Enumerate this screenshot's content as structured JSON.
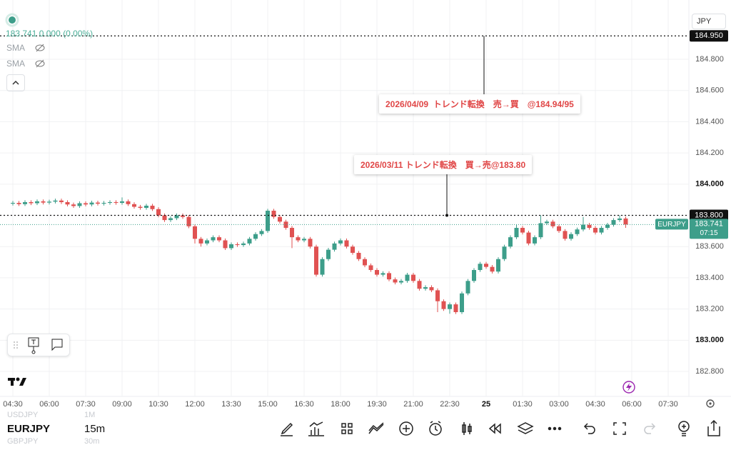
{
  "header": {
    "legend_price": "183.741 0.000 (0.00%)",
    "indicators": [
      "SMA",
      "SMA"
    ],
    "currency": "JPY"
  },
  "chart_data": {
    "type": "candlestick",
    "up_color": "#3d9e8a",
    "down_color": "#e05252",
    "grid": true,
    "ylim": [
      182.64,
      185.18
    ],
    "yticks": [
      {
        "value": 182.8,
        "label": "182.800"
      },
      {
        "value": 183.0,
        "label": "183.000"
      },
      {
        "value": 183.2,
        "label": "183.200"
      },
      {
        "value": 183.4,
        "label": "183.400"
      },
      {
        "value": 183.6,
        "label": "183.600"
      },
      {
        "value": 183.8,
        "label": "183.800"
      },
      {
        "value": 184.0,
        "label": "184.000"
      },
      {
        "value": 184.2,
        "label": "184.200"
      },
      {
        "value": 184.4,
        "label": "184.400"
      },
      {
        "value": 184.6,
        "label": "184.600"
      },
      {
        "value": 184.8,
        "label": "184.800"
      }
    ],
    "categories": [
      "04:30",
      null,
      null,
      null,
      null,
      null,
      "06:00",
      null,
      null,
      null,
      null,
      null,
      "07:30",
      null,
      null,
      null,
      null,
      null,
      "09:00",
      null,
      null,
      null,
      null,
      null,
      "10:30",
      null,
      null,
      null,
      null,
      null,
      "12:00",
      null,
      null,
      null,
      null,
      null,
      "13:30",
      null,
      null,
      null,
      null,
      null,
      "15:00",
      null,
      null,
      null,
      null,
      null,
      "16:30",
      null,
      null,
      null,
      null,
      null,
      "18:00",
      null,
      null,
      null,
      null,
      null,
      "19:30",
      null,
      null,
      null,
      null,
      null,
      "21:00",
      null,
      null,
      null,
      null,
      null,
      "22:30",
      null,
      null,
      null,
      null,
      null,
      "25",
      null,
      null,
      null,
      null,
      null,
      "01:30",
      null,
      null,
      null,
      null,
      null,
      "03:00",
      null,
      null,
      null,
      null,
      null,
      "04:30",
      null,
      null,
      null,
      null,
      null,
      "06:00",
      null,
      null,
      null,
      null,
      null,
      "07:30"
    ],
    "ohlc": [
      [
        183.875,
        183.892,
        183.863,
        183.88
      ],
      [
        183.88,
        183.892,
        183.86,
        183.872
      ],
      [
        183.872,
        183.897,
        183.86,
        183.885
      ],
      [
        183.885,
        183.897,
        183.866,
        183.878
      ],
      [
        183.878,
        183.902,
        183.866,
        183.89
      ],
      [
        183.89,
        183.902,
        183.87,
        183.882
      ],
      [
        183.882,
        183.9,
        183.87,
        183.888
      ],
      [
        183.888,
        183.907,
        183.876,
        183.895
      ],
      [
        183.895,
        183.907,
        183.873,
        183.885
      ],
      [
        183.885,
        183.897,
        183.858,
        183.87
      ],
      [
        183.87,
        183.882,
        183.848,
        183.86
      ],
      [
        183.86,
        183.89,
        183.848,
        183.878
      ],
      [
        183.878,
        183.89,
        183.858,
        183.87
      ],
      [
        183.87,
        183.894,
        183.858,
        183.882
      ],
      [
        183.882,
        183.894,
        183.863,
        183.875
      ],
      [
        183.875,
        183.892,
        183.863,
        183.88
      ],
      [
        183.88,
        183.897,
        183.868,
        183.885
      ],
      [
        183.885,
        183.897,
        183.868,
        183.88
      ],
      [
        183.88,
        183.915,
        183.868,
        183.89
      ],
      [
        183.89,
        183.902,
        183.86,
        183.872
      ],
      [
        183.872,
        183.884,
        183.843,
        183.855
      ],
      [
        183.855,
        183.867,
        183.836,
        183.848
      ],
      [
        183.848,
        183.874,
        183.836,
        183.862
      ],
      [
        183.862,
        183.874,
        183.828,
        183.84
      ],
      [
        183.84,
        183.852,
        183.788,
        183.8
      ],
      [
        183.8,
        183.812,
        183.758,
        183.77
      ],
      [
        183.77,
        183.794,
        183.758,
        183.782
      ],
      [
        183.782,
        183.812,
        183.77,
        183.8
      ],
      [
        183.8,
        183.812,
        183.778,
        183.79
      ],
      [
        183.79,
        183.802,
        183.718,
        183.73
      ],
      [
        183.73,
        183.742,
        183.62,
        183.65
      ],
      [
        183.65,
        183.662,
        183.6,
        183.62
      ],
      [
        183.62,
        183.652,
        183.608,
        183.64
      ],
      [
        183.64,
        183.672,
        183.628,
        183.66
      ],
      [
        183.66,
        183.672,
        183.628,
        183.64
      ],
      [
        183.64,
        183.652,
        183.578,
        183.59
      ],
      [
        183.59,
        183.627,
        183.578,
        183.615
      ],
      [
        183.615,
        183.627,
        183.598,
        183.61
      ],
      [
        183.61,
        183.632,
        183.598,
        183.62
      ],
      [
        183.62,
        183.662,
        183.608,
        183.65
      ],
      [
        183.65,
        183.692,
        183.638,
        183.68
      ],
      [
        183.68,
        183.712,
        183.668,
        183.7
      ],
      [
        183.7,
        183.842,
        183.688,
        183.83
      ],
      [
        183.83,
        183.842,
        183.778,
        183.79
      ],
      [
        183.79,
        183.802,
        183.748,
        183.76
      ],
      [
        183.76,
        183.772,
        183.708,
        183.72
      ],
      [
        183.72,
        183.732,
        183.59,
        183.66
      ],
      [
        183.66,
        183.672,
        183.628,
        183.64
      ],
      [
        183.64,
        183.662,
        183.628,
        183.65
      ],
      [
        183.65,
        183.662,
        183.588,
        183.6
      ],
      [
        183.6,
        183.612,
        183.408,
        183.42
      ],
      [
        183.42,
        183.532,
        183.408,
        183.52
      ],
      [
        183.52,
        183.592,
        183.508,
        183.58
      ],
      [
        183.58,
        183.632,
        183.568,
        183.62
      ],
      [
        183.62,
        183.652,
        183.608,
        183.64
      ],
      [
        183.64,
        183.652,
        183.588,
        183.6
      ],
      [
        183.6,
        183.612,
        183.548,
        183.56
      ],
      [
        183.56,
        183.572,
        183.508,
        183.52
      ],
      [
        183.52,
        183.532,
        183.468,
        183.48
      ],
      [
        183.48,
        183.492,
        183.438,
        183.45
      ],
      [
        183.45,
        183.462,
        183.408,
        183.42
      ],
      [
        183.42,
        183.442,
        183.408,
        183.43
      ],
      [
        183.43,
        183.442,
        183.378,
        183.39
      ],
      [
        183.39,
        183.402,
        183.358,
        183.37
      ],
      [
        183.37,
        183.392,
        183.358,
        183.38
      ],
      [
        183.38,
        183.432,
        183.368,
        183.42
      ],
      [
        183.42,
        183.432,
        183.368,
        183.38
      ],
      [
        183.38,
        183.392,
        183.318,
        183.33
      ],
      [
        183.33,
        183.352,
        183.318,
        183.34
      ],
      [
        183.34,
        183.352,
        183.308,
        183.32
      ],
      [
        183.32,
        183.332,
        183.18,
        183.25
      ],
      [
        183.25,
        183.262,
        183.188,
        183.2
      ],
      [
        183.2,
        183.242,
        183.17,
        183.23
      ],
      [
        183.23,
        183.242,
        183.168,
        183.18
      ],
      [
        183.18,
        183.312,
        183.168,
        183.3
      ],
      [
        183.3,
        183.392,
        183.288,
        183.38
      ],
      [
        183.38,
        183.462,
        183.368,
        183.45
      ],
      [
        183.45,
        183.502,
        183.438,
        183.49
      ],
      [
        183.49,
        183.502,
        183.458,
        183.47
      ],
      [
        183.47,
        183.482,
        183.428,
        183.44
      ],
      [
        183.44,
        183.532,
        183.428,
        183.52
      ],
      [
        183.52,
        183.612,
        183.508,
        183.6
      ],
      [
        183.6,
        183.672,
        183.588,
        183.66
      ],
      [
        183.66,
        183.742,
        183.648,
        183.72
      ],
      [
        183.72,
        183.732,
        183.678,
        183.69
      ],
      [
        183.69,
        183.702,
        183.608,
        183.62
      ],
      [
        183.62,
        183.672,
        183.608,
        183.66
      ],
      [
        183.66,
        183.8,
        183.648,
        183.75
      ],
      [
        183.75,
        183.772,
        183.738,
        183.76
      ],
      [
        183.76,
        183.772,
        183.718,
        183.73
      ],
      [
        183.73,
        183.742,
        183.688,
        183.7
      ],
      [
        183.7,
        183.712,
        183.638,
        183.65
      ],
      [
        183.65,
        183.692,
        183.638,
        183.68
      ],
      [
        183.68,
        183.722,
        183.668,
        183.71
      ],
      [
        183.71,
        183.79,
        183.698,
        183.74
      ],
      [
        183.74,
        183.752,
        183.708,
        183.72
      ],
      [
        183.72,
        183.732,
        183.678,
        183.69
      ],
      [
        183.69,
        183.732,
        183.678,
        183.72
      ],
      [
        183.72,
        183.752,
        183.708,
        183.74
      ],
      [
        183.74,
        183.782,
        183.728,
        183.77
      ],
      [
        183.77,
        183.8,
        183.758,
        183.78
      ],
      [
        183.78,
        183.792,
        183.72,
        183.741
      ],
      null,
      null,
      null,
      null,
      null,
      null,
      null
    ],
    "price_lines": [
      {
        "value": 184.95,
        "label": "184.950"
      },
      {
        "value": 183.8,
        "label": "183.800"
      }
    ],
    "last_price": {
      "value": 183.741,
      "label": "183.741",
      "symbol": "EURJPY",
      "countdown": "07:15",
      "color": "#3d9e8a"
    },
    "annotations": [
      "2026/04/09  トレンド転換　売→買　@184.94/95",
      "2026/03/11 トレンド転換　買→売@183.80"
    ]
  },
  "footer": {
    "prev_symbol": "USDJPY",
    "prev_interval": "1M",
    "symbol": "EURJPY",
    "interval": "15m",
    "next_symbol": "GBPJPY",
    "next_interval": "30m"
  }
}
